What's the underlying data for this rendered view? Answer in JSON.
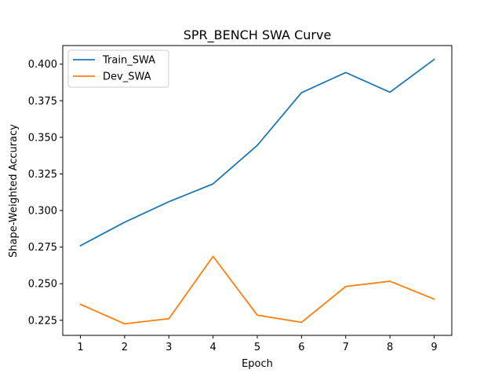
{
  "chart_data": {
    "type": "line",
    "title": "SPR_BENCH SWA Curve",
    "xlabel": "Epoch",
    "ylabel": "Shape-Weighted Accuracy",
    "x": [
      1,
      2,
      3,
      4,
      5,
      6,
      7,
      8,
      9
    ],
    "xticks": [
      "1",
      "2",
      "3",
      "4",
      "5",
      "6",
      "7",
      "8",
      "9"
    ],
    "yticks": [
      "0.225",
      "0.250",
      "0.275",
      "0.300",
      "0.325",
      "0.350",
      "0.375",
      "0.400"
    ],
    "xlim": [
      0.6,
      9.4
    ],
    "ylim": [
      0.2147,
      0.4127
    ],
    "grid": false,
    "legend_position": "upper-left",
    "series": [
      {
        "name": "Train_SWA",
        "color": "#1f77b4",
        "values": [
          0.276,
          0.292,
          0.306,
          0.3182,
          0.3445,
          0.3805,
          0.3943,
          0.3808,
          0.4032
        ]
      },
      {
        "name": "Dev_SWA",
        "color": "#ff7f0e",
        "values": [
          0.2359,
          0.2226,
          0.2261,
          0.2687,
          0.2285,
          0.2236,
          0.2481,
          0.2517,
          0.2395
        ]
      }
    ]
  }
}
